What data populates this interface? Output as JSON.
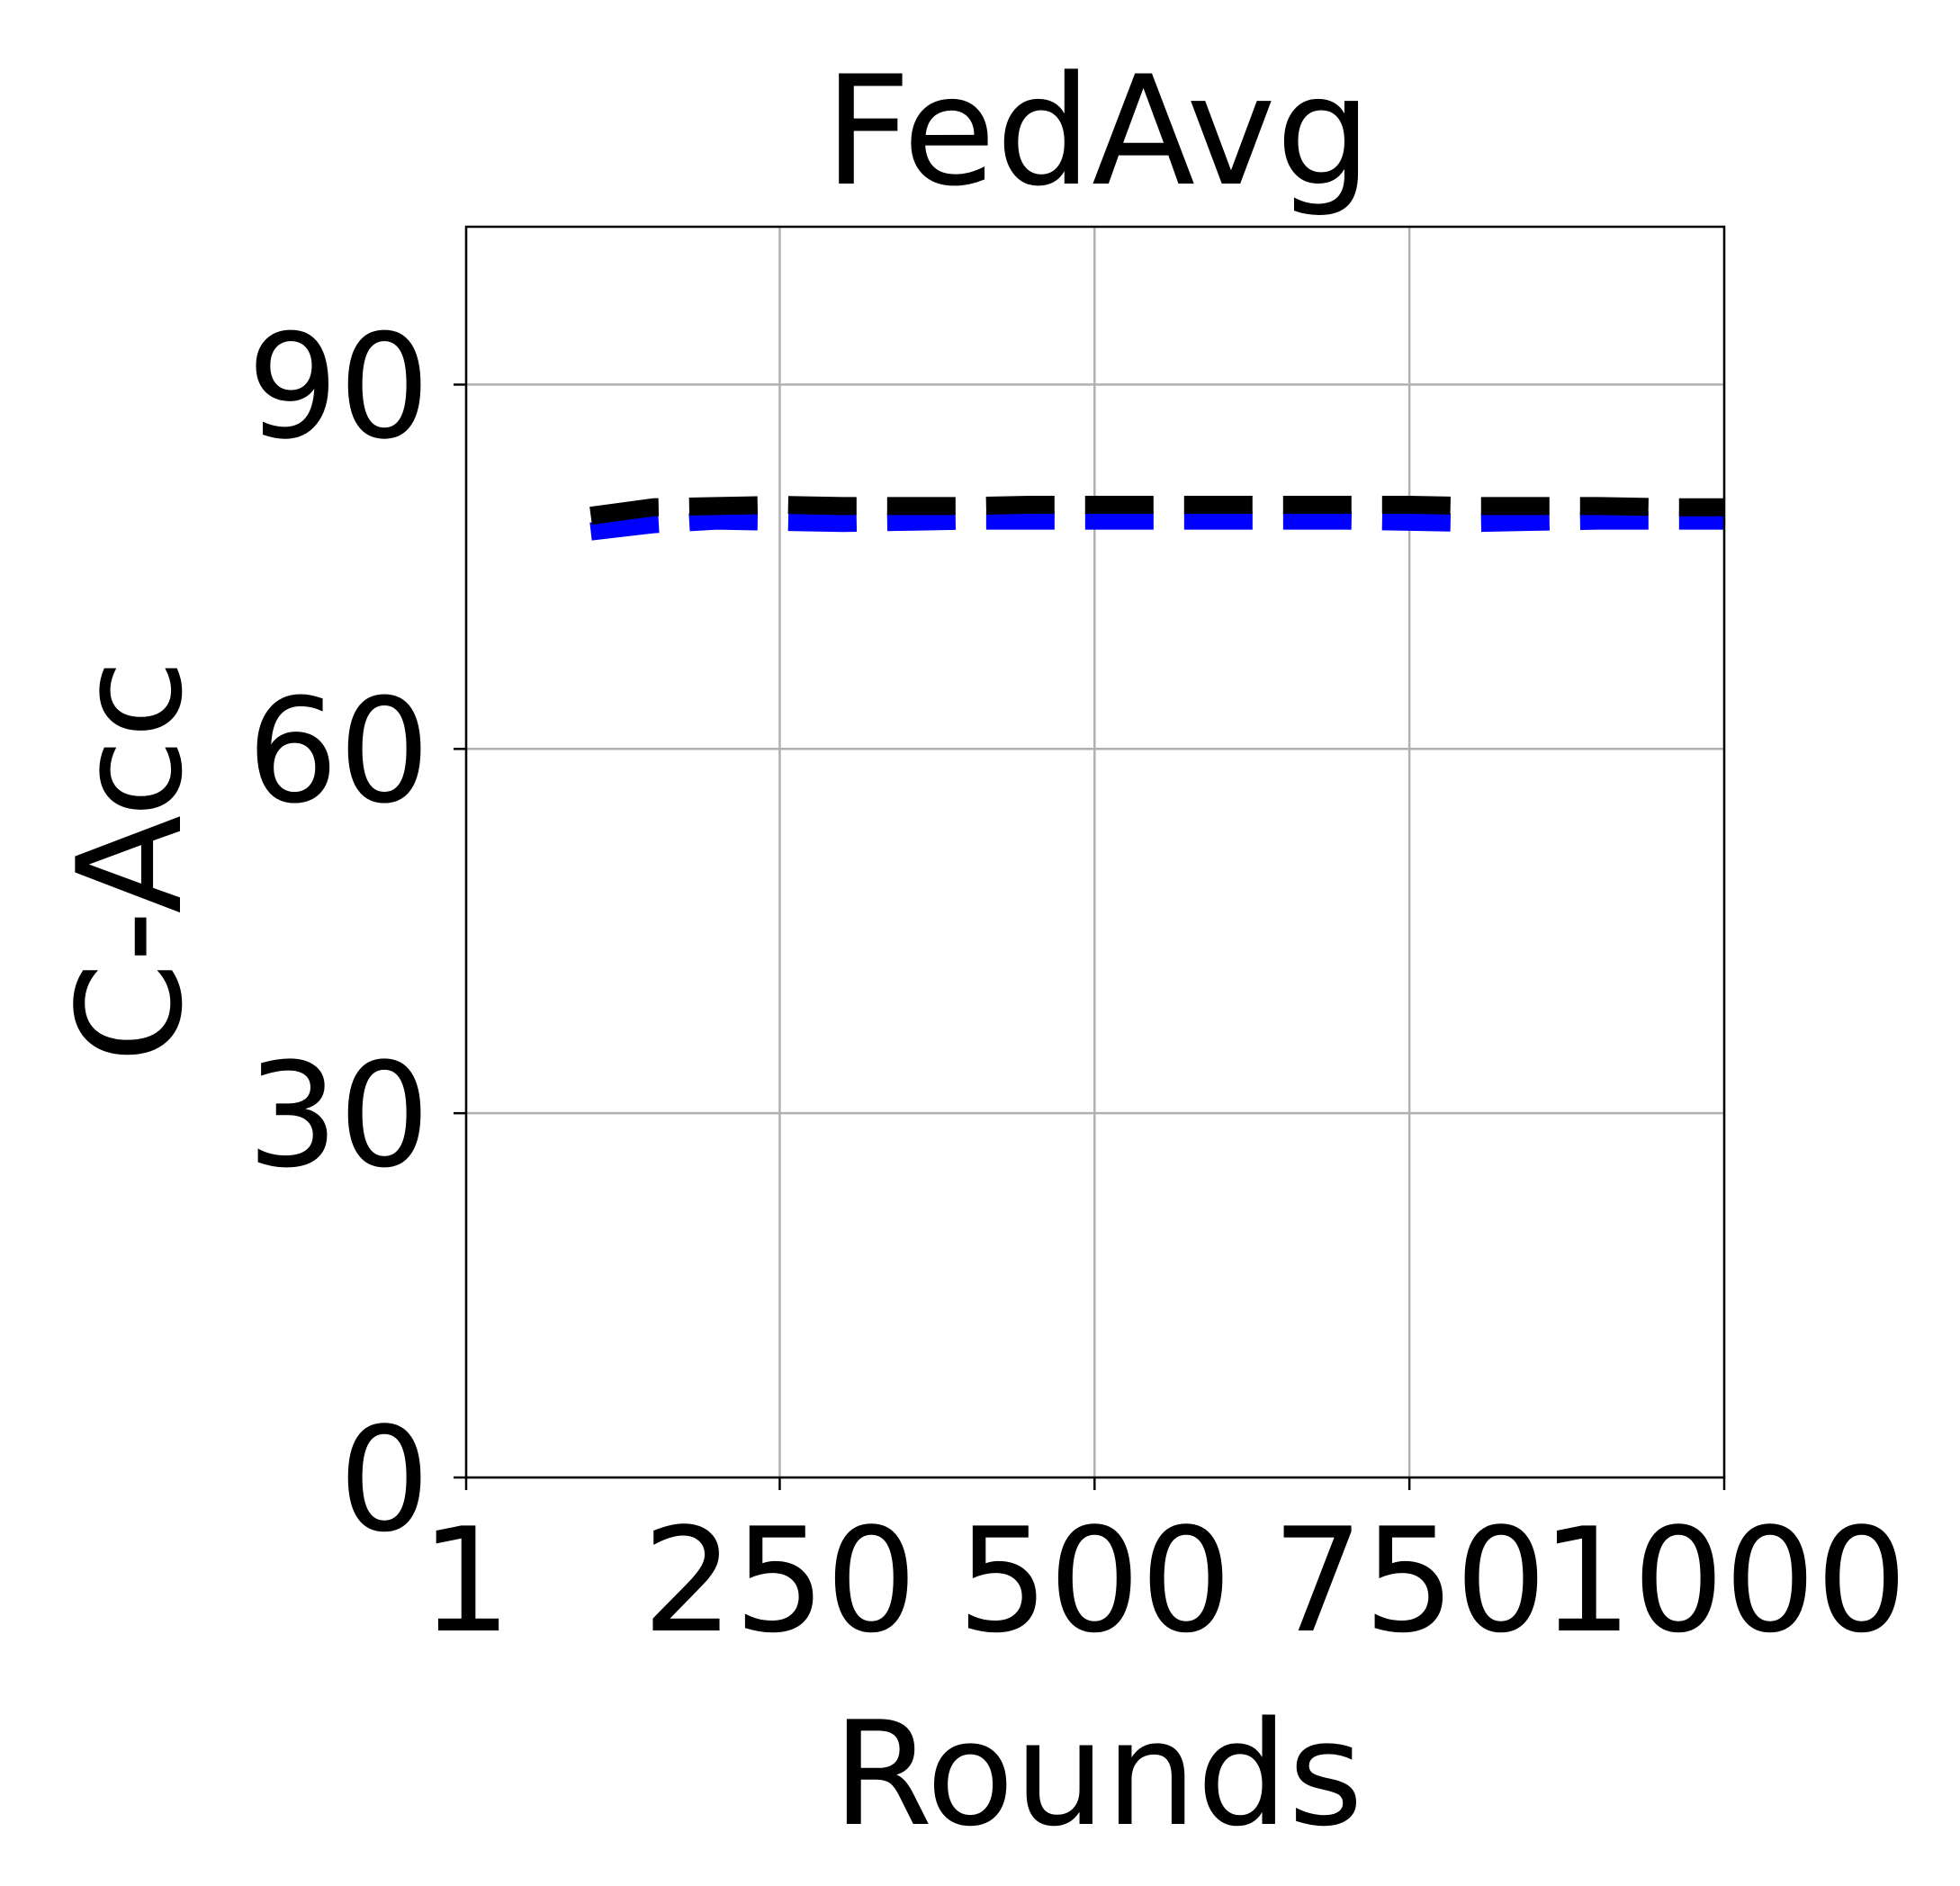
{
  "chart_data": {
    "type": "line",
    "title": "FedAvg",
    "xlabel": "Rounds",
    "ylabel": "C-Acc",
    "xlim": [
      1,
      1000
    ],
    "ylim": [
      0,
      103
    ],
    "x_ticks": [
      1,
      250,
      500,
      750,
      1000
    ],
    "x_tick_labels": [
      "1",
      "250",
      "500",
      "750",
      "1000"
    ],
    "y_ticks": [
      0,
      30,
      60,
      90
    ],
    "y_tick_labels": [
      "0",
      "30",
      "60",
      "90"
    ],
    "grid": true,
    "legend": null,
    "series": [
      {
        "color": "#0000ff",
        "line_style": "dashed",
        "x": [
          100,
          150,
          200,
          250,
          300,
          350,
          400,
          450,
          500,
          550,
          600,
          650,
          700,
          750,
          800,
          850,
          900,
          950,
          1000
        ],
        "values": [
          77.9,
          78.5,
          78.8,
          78.7,
          78.6,
          78.7,
          78.8,
          78.8,
          78.8,
          78.8,
          78.8,
          78.8,
          78.8,
          78.7,
          78.6,
          78.7,
          78.8,
          78.8,
          78.8
        ]
      },
      {
        "color": "#000000",
        "line_style": "dashed",
        "x": [
          100,
          150,
          200,
          250,
          300,
          350,
          400,
          450,
          500,
          550,
          600,
          650,
          700,
          750,
          800,
          850,
          900,
          950,
          1000
        ],
        "values": [
          79.2,
          79.9,
          80.0,
          80.1,
          80.0,
          80.0,
          80.0,
          80.1,
          80.1,
          80.1,
          80.1,
          80.1,
          80.1,
          80.1,
          80.0,
          80.0,
          80.0,
          79.9,
          79.9
        ]
      }
    ]
  }
}
